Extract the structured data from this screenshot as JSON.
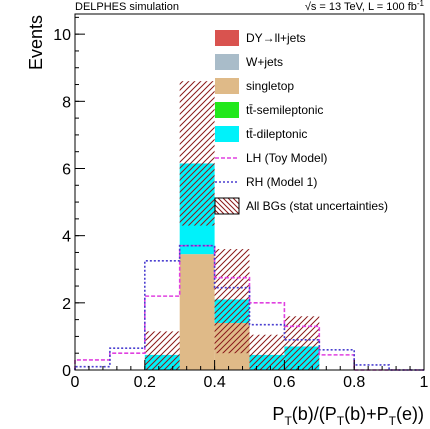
{
  "header": {
    "left": "DELPHES simulation",
    "right_prefix": "√s = 13 TeV, L = 100 fb",
    "right_sup": "-1"
  },
  "axes": {
    "ylabel": "Events",
    "xlabel_parts": [
      "P",
      "T",
      "(b)/(P",
      "T",
      "(b)+P",
      "T",
      "(e))"
    ]
  },
  "chart_data": {
    "type": "bar",
    "stacked": true,
    "bin_edges": [
      0,
      0.1,
      0.2,
      0.3,
      0.4,
      0.5,
      0.6,
      0.7,
      0.8,
      0.9,
      1.0
    ],
    "xlim": [
      0,
      1
    ],
    "ylim": [
      0,
      10.6
    ],
    "x_ticks": [
      0,
      0.2,
      0.4,
      0.6,
      0.8,
      1
    ],
    "x_tick_labels": [
      "0",
      "0.2",
      "0.4",
      "0.6",
      "0.8",
      "1"
    ],
    "y_ticks": [
      0,
      2,
      4,
      6,
      8,
      10
    ],
    "y_tick_labels": [
      "0",
      "2",
      "4",
      "6",
      "8",
      "10"
    ],
    "grid": false,
    "legend_position": "top-right",
    "stack_series": [
      {
        "name": "DY→ll+jets",
        "color": "#d9534f",
        "values": [
          0,
          0,
          0,
          0,
          0,
          0,
          0,
          0,
          0,
          0
        ]
      },
      {
        "name": "W+jets",
        "color": "#a9bcc9",
        "values": [
          0,
          0,
          0,
          0,
          0,
          0,
          0,
          0,
          0,
          0
        ]
      },
      {
        "name": "singletop",
        "color": "#dfba88",
        "values": [
          0,
          0,
          0,
          3.45,
          1.4,
          0,
          0,
          0,
          0,
          0
        ]
      },
      {
        "name": "tt̄-semileptonic",
        "color": "#22e81b",
        "values": [
          0,
          0,
          0,
          0,
          0,
          0,
          0,
          0,
          0,
          0
        ]
      },
      {
        "name": "tt̄-dileptonic",
        "color": "#00f2fa",
        "values": [
          0,
          0,
          0.45,
          2.7,
          0.7,
          0.45,
          0.7,
          0,
          0,
          0
        ]
      }
    ],
    "uncertainty": {
      "name": "All BGs (stat uncertainties)",
      "low": [
        0,
        0,
        0,
        4.3,
        0.5,
        0,
        0,
        0,
        0,
        0
      ],
      "high": [
        0,
        0,
        1.15,
        8.6,
        3.6,
        1.05,
        1.6,
        0,
        0,
        0
      ]
    },
    "signals": [
      {
        "name": "LH (Toy Model)",
        "color": "#e040e0",
        "values": [
          0.3,
          0.5,
          2.2,
          3.7,
          2.75,
          2.0,
          1.3,
          0.45,
          0,
          0
        ]
      },
      {
        "name": "RH (Model 1)",
        "color": "#4a3fd0",
        "values": [
          0.1,
          0.65,
          3.25,
          3.7,
          2.45,
          1.35,
          0.9,
          0.6,
          0.15,
          0
        ]
      }
    ]
  }
}
